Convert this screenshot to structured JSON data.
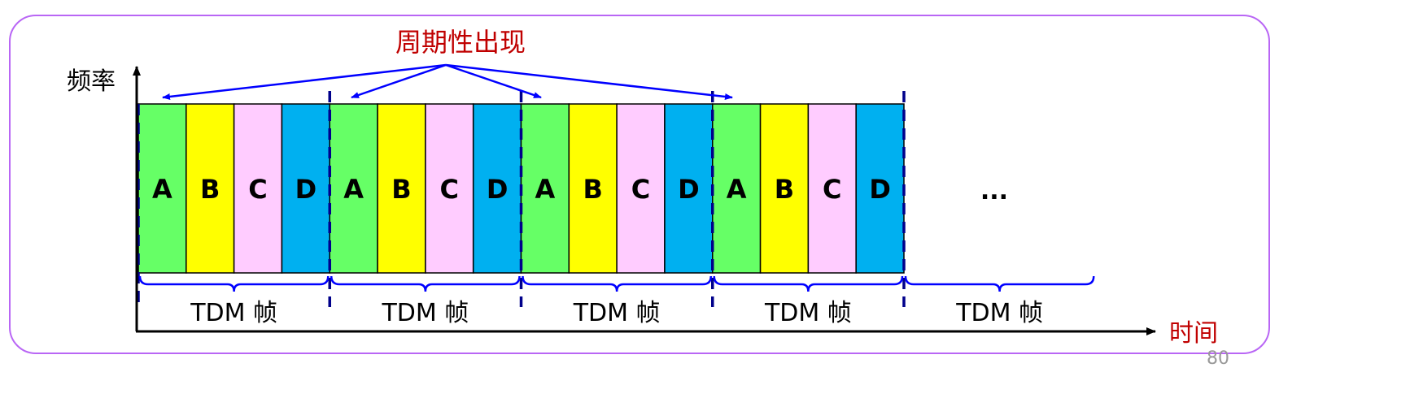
{
  "title": "周期性出现",
  "y_axis_label": "频率",
  "x_axis_label": "时间",
  "slot_labels": [
    "A",
    "B",
    "C",
    "D"
  ],
  "frames_with_slots": 4,
  "frame_label": "TDM 帧",
  "frame_count": 5,
  "ellipsis": "...",
  "page_number": "80",
  "colors": {
    "A": "#66ff66",
    "B": "#ffff00",
    "C": "#ffccff",
    "D": "#00b0f0",
    "title": "#c00000",
    "arrows": "#0000ff",
    "frame_divider": "#00008b",
    "border": "#b966f5"
  }
}
